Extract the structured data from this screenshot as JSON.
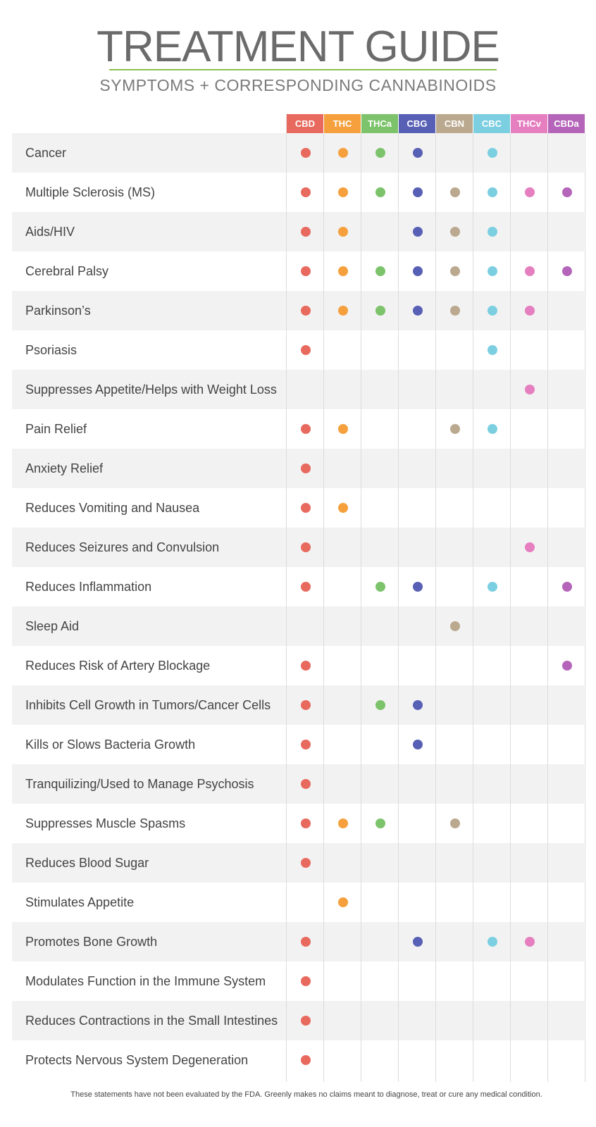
{
  "header": {
    "title": "TREATMENT GUIDE",
    "subtitle": "SYMPTOMS + CORRESPONDING CANNABINOIDS"
  },
  "columns": [
    {
      "label": "CBD",
      "color": "#e8695e"
    },
    {
      "label": "THC",
      "color": "#f5a03c"
    },
    {
      "label": "THCa",
      "color": "#7cc36b"
    },
    {
      "label": "CBG",
      "color": "#5860b5"
    },
    {
      "label": "CBN",
      "color": "#bba98f"
    },
    {
      "label": "CBC",
      "color": "#7ccfe0"
    },
    {
      "label": "THCv",
      "color": "#e57fc0"
    },
    {
      "label": "CBDa",
      "color": "#b565b9"
    }
  ],
  "rows": [
    {
      "label": "Cancer",
      "marks": [
        1,
        1,
        1,
        1,
        0,
        1,
        0,
        0
      ]
    },
    {
      "label": "Multiple Sclerosis (MS)",
      "marks": [
        1,
        1,
        1,
        1,
        1,
        1,
        1,
        1
      ]
    },
    {
      "label": "Aids/HIV",
      "marks": [
        1,
        1,
        0,
        1,
        1,
        1,
        0,
        0
      ]
    },
    {
      "label": "Cerebral Palsy",
      "marks": [
        1,
        1,
        1,
        1,
        1,
        1,
        1,
        1
      ]
    },
    {
      "label": "Parkinson’s",
      "marks": [
        1,
        1,
        1,
        1,
        1,
        1,
        1,
        0
      ]
    },
    {
      "label": "Psoriasis",
      "marks": [
        1,
        0,
        0,
        0,
        0,
        1,
        0,
        0
      ]
    },
    {
      "label": "Suppresses Appetite/Helps with Weight Loss",
      "marks": [
        0,
        0,
        0,
        0,
        0,
        0,
        1,
        0
      ]
    },
    {
      "label": "Pain Relief",
      "marks": [
        1,
        1,
        0,
        0,
        1,
        1,
        0,
        0
      ]
    },
    {
      "label": "Anxiety Relief",
      "marks": [
        1,
        0,
        0,
        0,
        0,
        0,
        0,
        0
      ]
    },
    {
      "label": "Reduces Vomiting and Nausea",
      "marks": [
        1,
        1,
        0,
        0,
        0,
        0,
        0,
        0
      ]
    },
    {
      "label": "Reduces Seizures and Convulsion",
      "marks": [
        1,
        0,
        0,
        0,
        0,
        0,
        1,
        0
      ]
    },
    {
      "label": "Reduces Inflammation",
      "marks": [
        1,
        0,
        1,
        1,
        0,
        1,
        0,
        1
      ]
    },
    {
      "label": "Sleep Aid",
      "marks": [
        0,
        0,
        0,
        0,
        1,
        0,
        0,
        0
      ]
    },
    {
      "label": "Reduces Risk of Artery Blockage",
      "marks": [
        1,
        0,
        0,
        0,
        0,
        0,
        0,
        1
      ]
    },
    {
      "label": "Inhibits Cell Growth in Tumors/Cancer Cells",
      "marks": [
        1,
        0,
        1,
        1,
        0,
        0,
        0,
        0
      ]
    },
    {
      "label": "Kills or Slows Bacteria Growth",
      "marks": [
        1,
        0,
        0,
        1,
        0,
        0,
        0,
        0
      ]
    },
    {
      "label": "Tranquilizing/Used to Manage Psychosis",
      "marks": [
        1,
        0,
        0,
        0,
        0,
        0,
        0,
        0
      ]
    },
    {
      "label": "Suppresses Muscle Spasms",
      "marks": [
        1,
        1,
        1,
        0,
        1,
        0,
        0,
        0
      ]
    },
    {
      "label": "Reduces Blood Sugar",
      "marks": [
        1,
        0,
        0,
        0,
        0,
        0,
        0,
        0
      ]
    },
    {
      "label": "Stimulates Appetite",
      "marks": [
        0,
        1,
        0,
        0,
        0,
        0,
        0,
        0
      ]
    },
    {
      "label": "Promotes Bone Growth",
      "marks": [
        1,
        0,
        0,
        1,
        0,
        1,
        1,
        0
      ]
    },
    {
      "label": "Modulates Function in the Immune System",
      "marks": [
        1,
        0,
        0,
        0,
        0,
        0,
        0,
        0
      ]
    },
    {
      "label": "Reduces Contractions in the Small Intestines",
      "marks": [
        1,
        0,
        0,
        0,
        0,
        0,
        0,
        0
      ]
    },
    {
      "label": "Protects Nervous System Degeneration",
      "marks": [
        1,
        0,
        0,
        0,
        0,
        0,
        0,
        0
      ]
    }
  ],
  "footer": "These statements have not been evaluated by the FDA. Greenly makes no claims meant to diagnose, treat or cure any medical condition."
}
